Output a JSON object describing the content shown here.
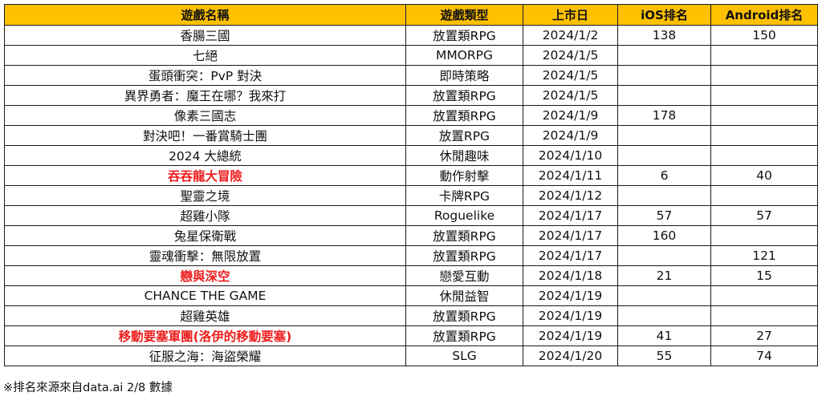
{
  "table": {
    "columns": [
      "遊戲名稱",
      "遊戲類型",
      "上市日",
      "iOS排名",
      "Android排名"
    ],
    "header_bg": "#ffc000",
    "highlight_color": "#ee1c1c",
    "rows": [
      {
        "name": "香腸三國",
        "genre": "放置類RPG",
        "date": "2024/1/2",
        "ios": "138",
        "android": "150",
        "highlight": false
      },
      {
        "name": "七絕",
        "genre": "MMORPG",
        "date": "2024/1/5",
        "ios": "",
        "android": "",
        "highlight": false
      },
      {
        "name": "蛋頭衝突：PvP 對決",
        "genre": "即時策略",
        "date": "2024/1/5",
        "ios": "",
        "android": "",
        "highlight": false
      },
      {
        "name": "異界勇者：魔王在哪？我來打",
        "genre": "放置類RPG",
        "date": "2024/1/5",
        "ios": "",
        "android": "",
        "highlight": false
      },
      {
        "name": "像素三國志",
        "genre": "放置類RPG",
        "date": "2024/1/9",
        "ios": "178",
        "android": "",
        "highlight": false
      },
      {
        "name": "對決吧！一番賞騎士團",
        "genre": "放置RPG",
        "date": "2024/1/9",
        "ios": "",
        "android": "",
        "highlight": false
      },
      {
        "name": "2024 大總統",
        "genre": "休閒趣味",
        "date": "2024/1/10",
        "ios": "",
        "android": "",
        "highlight": false
      },
      {
        "name": "吞吞龍大冒險",
        "genre": "動作射擊",
        "date": "2024/1/11",
        "ios": "6",
        "android": "40",
        "highlight": true
      },
      {
        "name": "聖靈之境",
        "genre": "卡牌RPG",
        "date": "2024/1/12",
        "ios": "",
        "android": "",
        "highlight": false
      },
      {
        "name": "超雞小隊",
        "genre": "Roguelike",
        "date": "2024/1/17",
        "ios": "57",
        "android": "57",
        "highlight": false
      },
      {
        "name": "兔星保衛戰",
        "genre": "放置類RPG",
        "date": "2024/1/17",
        "ios": "160",
        "android": "",
        "highlight": false
      },
      {
        "name": "靈魂衝擊：無限放置",
        "genre": "放置類RPG",
        "date": "2024/1/17",
        "ios": "",
        "android": "121",
        "highlight": false
      },
      {
        "name": "戀與深空",
        "genre": "戀愛互動",
        "date": "2024/1/18",
        "ios": "21",
        "android": "15",
        "highlight": true
      },
      {
        "name": "CHANCE THE GAME",
        "genre": "休閒益智",
        "date": "2024/1/19",
        "ios": "",
        "android": "",
        "highlight": false
      },
      {
        "name": "超雞英雄",
        "genre": "放置類RPG",
        "date": "2024/1/19",
        "ios": "",
        "android": "",
        "highlight": false
      },
      {
        "name": "移動要塞軍團(洛伊的移動要塞)",
        "genre": "放置類RPG",
        "date": "2024/1/19",
        "ios": "41",
        "android": "27",
        "highlight": true
      },
      {
        "name": "征服之海：海盜榮耀",
        "genre": "SLG",
        "date": "2024/1/20",
        "ios": "55",
        "android": "74",
        "highlight": false
      }
    ]
  },
  "footnote": "※排名來源來自data.ai 2/8 數據"
}
